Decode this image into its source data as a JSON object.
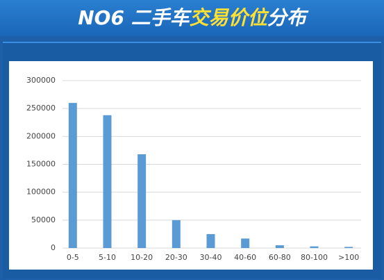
{
  "chart_data": {
    "type": "bar",
    "title_parts": [
      "NO6 二手车",
      "交易价位",
      "分布"
    ],
    "categories": [
      "0-5",
      "5-10",
      "10-20",
      "20-30",
      "30-40",
      "40-60",
      "60-80",
      "80-100",
      ">100"
    ],
    "values": [
      260000,
      238000,
      168000,
      50000,
      25000,
      17000,
      5000,
      3000,
      2000
    ],
    "color": "#5b9bd5",
    "ylim": [
      0,
      300000
    ],
    "yticks": [
      0,
      50000,
      100000,
      150000,
      200000,
      250000,
      300000
    ],
    "grid": true
  }
}
